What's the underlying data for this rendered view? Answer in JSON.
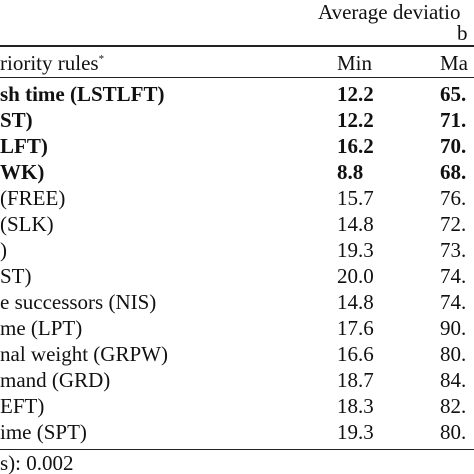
{
  "header": {
    "group_title": "Average deviatio",
    "group_subtitle_fragment": "b",
    "rules_column": "riority rules",
    "rules_footnote_mark": "*",
    "min_column": "Min",
    "max_column": "Ma"
  },
  "rows": [
    {
      "rule": "sh time (LSTLFT)",
      "min": "12.2",
      "max": "65.",
      "bold": true
    },
    {
      "rule": "ST)",
      "min": "12.2",
      "max": "71.",
      "bold": true
    },
    {
      "rule": "LFT)",
      "min": "16.2",
      "max": "70.",
      "bold": true
    },
    {
      "rule": "WK)",
      "min": "8.8",
      "max": "68.",
      "bold": true
    },
    {
      "rule": "(FREE)",
      "min": "15.7",
      "max": "76.",
      "bold": false
    },
    {
      "rule": "(SLK)",
      "min": "14.8",
      "max": "72.",
      "bold": false
    },
    {
      "rule": ")",
      "min": "19.3",
      "max": "73.",
      "bold": false
    },
    {
      "rule": "ST)",
      "min": "20.0",
      "max": "74.",
      "bold": false
    },
    {
      "rule": "e successors (NIS)",
      "min": "14.8",
      "max": "74.",
      "bold": false
    },
    {
      "rule": "me (LPT)",
      "min": "17.6",
      "max": "90.",
      "bold": false
    },
    {
      "rule": "nal weight (GRPW)",
      "min": "16.6",
      "max": "80.",
      "bold": false
    },
    {
      "rule": "mand (GRD)",
      "min": "18.7",
      "max": "84.",
      "bold": false
    },
    {
      "rule": "EFT)",
      "min": "18.3",
      "max": "82.",
      "bold": false
    },
    {
      "rule": "ime (SPT)",
      "min": "19.3",
      "max": "80."
    }
  ],
  "footer": {
    "note": "s): 0.002"
  }
}
